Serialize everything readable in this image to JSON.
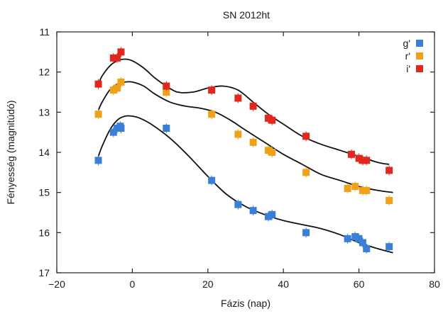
{
  "chart_data": {
    "type": "scatter",
    "title": "SN 2012ht",
    "xlabel": "Fázis (nap)",
    "ylabel": "Fényesség (magnitúdó)",
    "xlim": [
      -20,
      80
    ],
    "ylim": [
      17,
      11
    ],
    "y_inverted": true,
    "x_ticks": [
      -20,
      0,
      20,
      40,
      60,
      80
    ],
    "y_ticks": [
      11,
      12,
      13,
      14,
      15,
      16,
      17
    ],
    "grid": false,
    "legend_position": "top-right",
    "series": [
      {
        "name": "g'",
        "color": "#3a7fd5",
        "points": [
          [
            -9,
            14.2
          ],
          [
            -5,
            13.5
          ],
          [
            -4,
            13.4
          ],
          [
            -3,
            13.4
          ],
          [
            -3.2,
            13.35
          ],
          [
            9,
            13.4
          ],
          [
            21,
            14.7
          ],
          [
            28,
            15.3
          ],
          [
            32,
            15.45
          ],
          [
            36,
            15.6
          ],
          [
            37,
            15.55
          ],
          [
            46,
            16.0
          ],
          [
            57,
            16.15
          ],
          [
            59,
            16.1
          ],
          [
            60,
            16.15
          ],
          [
            61,
            16.25
          ],
          [
            62,
            16.4
          ],
          [
            68,
            16.35
          ]
        ],
        "fit": [
          [
            -9,
            14.1
          ],
          [
            -8,
            13.85
          ],
          [
            -6,
            13.45
          ],
          [
            -4,
            13.2
          ],
          [
            -2,
            13.1
          ],
          [
            0,
            13.1
          ],
          [
            2,
            13.15
          ],
          [
            5,
            13.3
          ],
          [
            10,
            13.65
          ],
          [
            15,
            14.1
          ],
          [
            20,
            14.6
          ],
          [
            25,
            15.05
          ],
          [
            30,
            15.35
          ],
          [
            35,
            15.55
          ],
          [
            40,
            15.7
          ],
          [
            45,
            15.8
          ],
          [
            50,
            15.9
          ],
          [
            55,
            16.05
          ],
          [
            60,
            16.25
          ],
          [
            65,
            16.4
          ],
          [
            69,
            16.5
          ]
        ]
      },
      {
        "name": "r'",
        "color": "#f0a11a",
        "points": [
          [
            -9,
            13.05
          ],
          [
            -5,
            12.45
          ],
          [
            -4,
            12.4
          ],
          [
            -3,
            12.25
          ],
          [
            9,
            12.5
          ],
          [
            21,
            13.05
          ],
          [
            28,
            13.55
          ],
          [
            32,
            13.75
          ],
          [
            36,
            13.95
          ],
          [
            37,
            14.0
          ],
          [
            46,
            14.5
          ],
          [
            57,
            14.9
          ],
          [
            59,
            14.85
          ],
          [
            61,
            14.95
          ],
          [
            62,
            14.95
          ],
          [
            68,
            15.2
          ]
        ],
        "fit": [
          [
            -9,
            12.95
          ],
          [
            -8,
            12.75
          ],
          [
            -6,
            12.45
          ],
          [
            -4,
            12.3
          ],
          [
            -2,
            12.25
          ],
          [
            0,
            12.25
          ],
          [
            3,
            12.35
          ],
          [
            6,
            12.55
          ],
          [
            10,
            12.75
          ],
          [
            14,
            12.85
          ],
          [
            18,
            12.9
          ],
          [
            22,
            13.0
          ],
          [
            26,
            13.2
          ],
          [
            30,
            13.45
          ],
          [
            35,
            13.75
          ],
          [
            40,
            14.05
          ],
          [
            45,
            14.3
          ],
          [
            50,
            14.55
          ],
          [
            55,
            14.7
          ],
          [
            60,
            14.85
          ],
          [
            65,
            14.95
          ],
          [
            69,
            15.0
          ]
        ]
      },
      {
        "name": "i'",
        "color": "#e0281f",
        "points": [
          [
            -9,
            12.3
          ],
          [
            -5,
            11.65
          ],
          [
            -4,
            11.65
          ],
          [
            -3,
            11.5
          ],
          [
            9,
            12.35
          ],
          [
            21,
            12.45
          ],
          [
            28,
            12.65
          ],
          [
            32,
            12.85
          ],
          [
            36,
            13.15
          ],
          [
            37,
            13.2
          ],
          [
            46,
            13.6
          ],
          [
            58,
            14.05
          ],
          [
            60,
            14.15
          ],
          [
            61,
            14.2
          ],
          [
            62,
            14.2
          ],
          [
            68,
            14.45
          ]
        ],
        "fit": [
          [
            -9,
            12.3
          ],
          [
            -8,
            12.1
          ],
          [
            -6,
            11.85
          ],
          [
            -4,
            11.72
          ],
          [
            -2,
            11.68
          ],
          [
            0,
            11.72
          ],
          [
            3,
            11.9
          ],
          [
            6,
            12.15
          ],
          [
            9,
            12.35
          ],
          [
            12,
            12.5
          ],
          [
            16,
            12.5
          ],
          [
            20,
            12.4
          ],
          [
            24,
            12.35
          ],
          [
            28,
            12.45
          ],
          [
            32,
            12.75
          ],
          [
            36,
            13.05
          ],
          [
            40,
            13.3
          ],
          [
            45,
            13.6
          ],
          [
            50,
            13.8
          ],
          [
            55,
            13.95
          ],
          [
            60,
            14.1
          ],
          [
            65,
            14.25
          ],
          [
            68,
            14.3
          ]
        ]
      }
    ]
  }
}
